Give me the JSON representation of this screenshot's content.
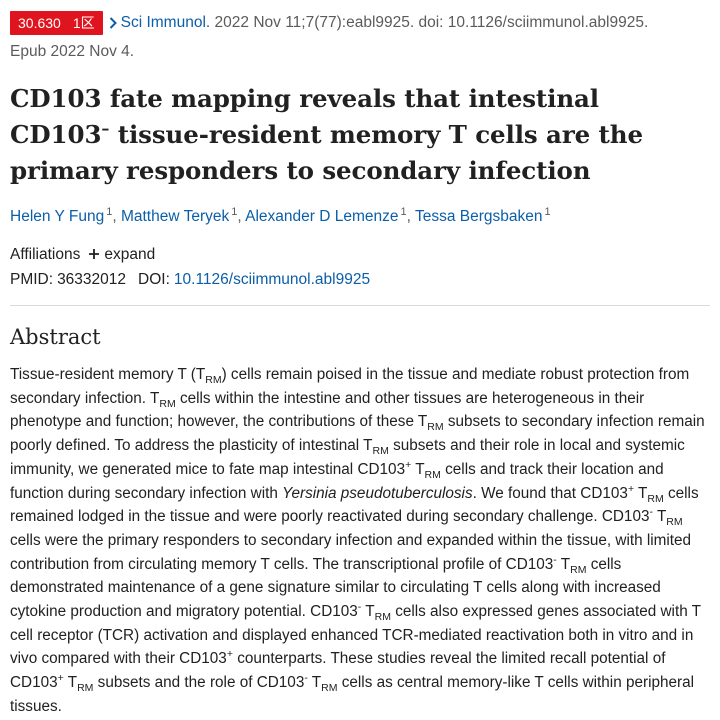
{
  "citation": {
    "impact_factor": "30.630",
    "quartile": "1区",
    "journal": "Sci Immunol.",
    "details": "2022 Nov 11;7(77):eabl9925. doi: 10.1126/sciimmunol.abl9925.",
    "epub": "Epub 2022 Nov 4."
  },
  "article": {
    "title_part1": "CD103 fate mapping reveals that intestinal CD103",
    "title_sup": "–",
    "title_part2": "tissue-resident memory T cells are the primary responders to secondary infection"
  },
  "authors": [
    {
      "name": "Helen Y Fung",
      "affil": "1"
    },
    {
      "name": "Matthew Teryek",
      "affil": "1"
    },
    {
      "name": "Alexander D Lemenze",
      "affil": "1"
    },
    {
      "name": "Tessa Bergsbaken",
      "affil": "1"
    }
  ],
  "affiliations": {
    "label": "Affiliations",
    "expand_label": "expand"
  },
  "identifiers": {
    "pmid_label": "PMID:",
    "pmid": "36332012",
    "doi_label": "DOI:",
    "doi": "10.1126/sciimmunol.abl9925"
  },
  "abstract": {
    "heading": "Abstract",
    "segments": {
      "s1": "Tissue-resident memory T (T",
      "rm": "RM",
      "s2": ") cells remain poised in the tissue and mediate robust protection from secondary infection. T",
      "s3": " cells within the intestine and other tissues are heterogeneous in their phenotype and function; however, the contributions of these T",
      "s4": " subsets to secondary infection remain poorly defined. To address the plasticity of intestinal T",
      "s5": " subsets and their role in local and systemic immunity, we generated mice to fate map intestinal CD103",
      "plus": "+",
      "minus": "-",
      "s6": " T",
      "s7": " cells and track their location and function during secondary infection with ",
      "species": "Yersinia pseudotuberculosis",
      "s8": ". We found that CD103",
      "s9": " cells remained lodged in the tissue and were poorly reactivated during secondary challenge. CD103",
      "s10": " cells were the primary responders to secondary infection and expanded within the tissue, with limited contribution from circulating memory T cells. The transcriptional profile of CD103",
      "s11": " cells demonstrated maintenance of a gene signature similar to circulating T cells along with increased cytokine production and migratory potential. CD103",
      "s12": " cells also expressed genes associated with T cell receptor (TCR) activation and displayed enhanced TCR-mediated reactivation both in vitro and in vivo compared with their CD103",
      "s13": " counterparts. These studies reveal the limited recall potential of CD103",
      "s14": " subsets and the role of CD103",
      "s15": " cells as central memory-like T cells within peripheral tissues."
    }
  },
  "colors": {
    "badge": "#e0141e",
    "link": "#0b5ea8",
    "text": "#212121",
    "muted": "#5b5b5b"
  },
  "icons": {
    "breadcrumb": "chevron-right-icon",
    "expand": "plus-icon"
  }
}
